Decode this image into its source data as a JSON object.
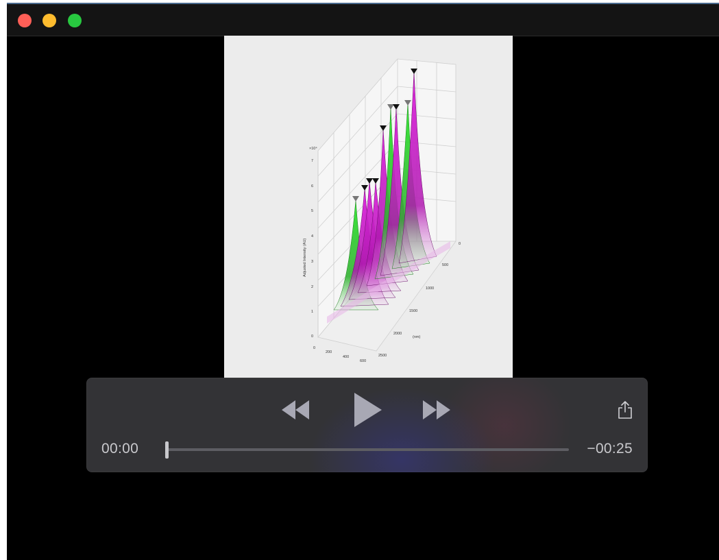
{
  "window": {
    "buttons": [
      "close",
      "minimize",
      "zoom"
    ]
  },
  "video": {
    "frame": {
      "ylabel": "Adjusted Intensity (AU)",
      "y_exponent": "×10⁴",
      "y_ticks": [
        "0",
        "1",
        "2",
        "3",
        "4",
        "5",
        "6",
        "7"
      ],
      "x_ticks": [
        "0",
        "200",
        "400",
        "600"
      ],
      "depth_ticks": [
        "0",
        "500",
        "1000",
        "1500",
        "2000",
        "2500"
      ],
      "depth_label": "(nm)",
      "colors": {
        "green": "#2fdc2f",
        "magenta": "#d61fd6",
        "marker": "#111111"
      }
    }
  },
  "controls": {
    "icons": {
      "rewind": "rewind-icon",
      "play": "play-icon",
      "fast_forward": "fast-forward-icon",
      "share": "share-icon"
    },
    "time_elapsed": "00:00",
    "time_remaining": "−00:25",
    "progress": 0
  }
}
